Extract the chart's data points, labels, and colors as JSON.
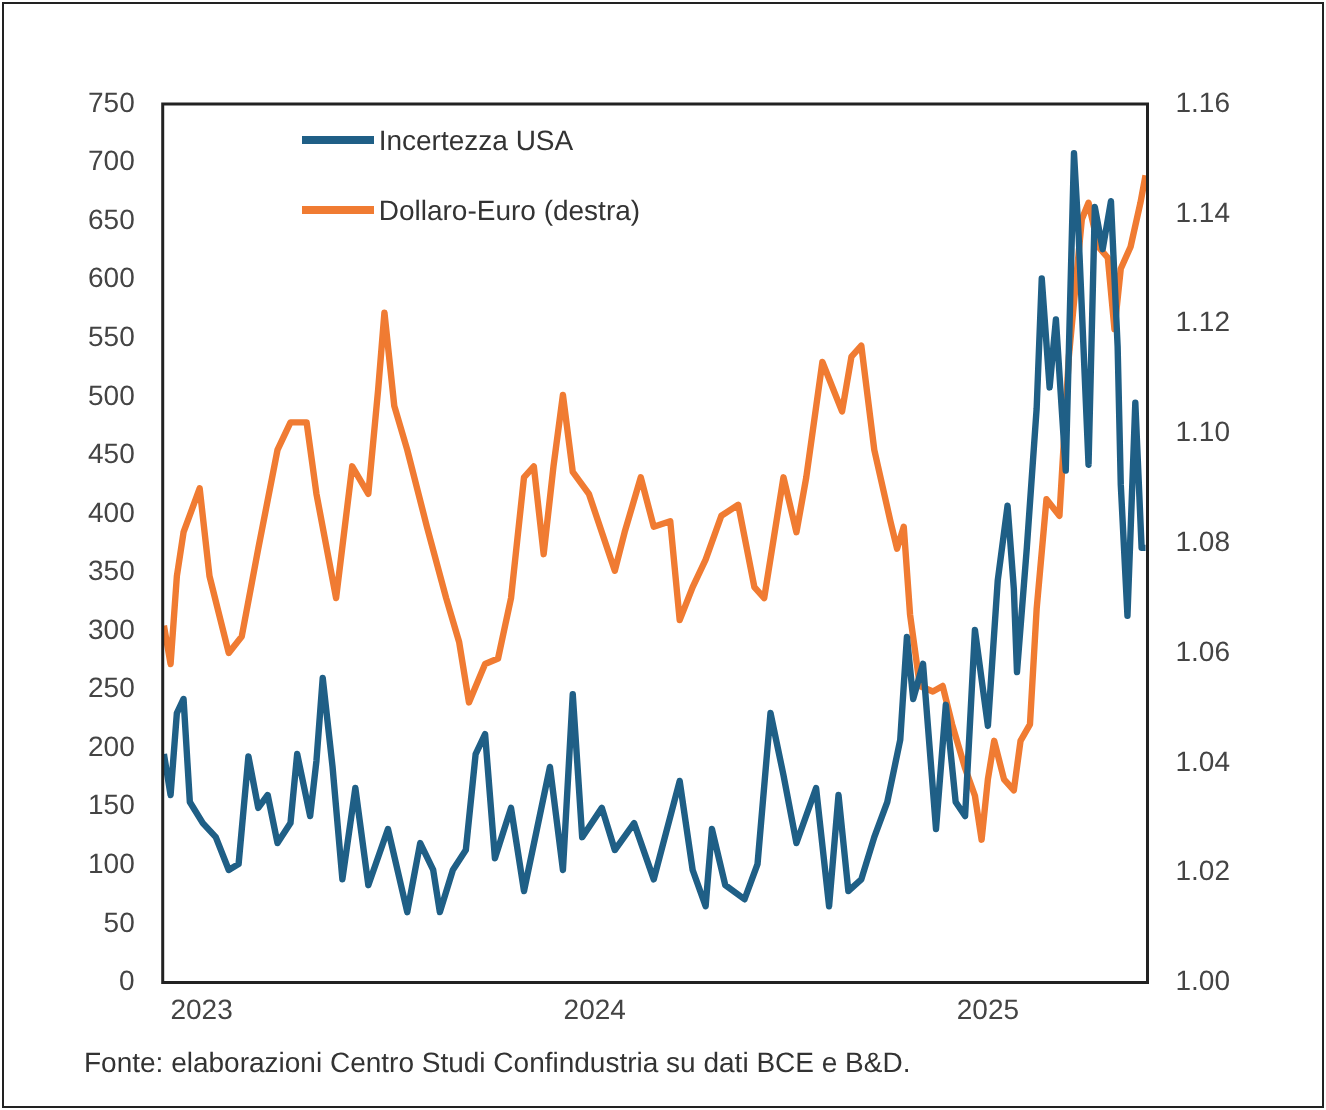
{
  "chart_data": {
    "type": "line",
    "xlim": [
      2022.901,
      2025.406
    ],
    "xticks": [
      2023,
      2024,
      2025
    ],
    "ylim": [
      0,
      750
    ],
    "yticks": [
      0,
      50,
      100,
      150,
      200,
      250,
      300,
      350,
      400,
      450,
      500,
      550,
      600,
      650,
      700,
      750
    ],
    "y2lim": [
      1.0,
      1.16
    ],
    "y2ticks": [
      {
        "value": 1.0,
        "label": "1.00"
      },
      {
        "value": 1.02,
        "label": "1.02"
      },
      {
        "value": 1.04,
        "label": "1.04"
      },
      {
        "value": 1.06,
        "label": "1.06"
      },
      {
        "value": 1.08,
        "label": "1.08"
      },
      {
        "value": 1.1,
        "label": "1.10"
      },
      {
        "value": 1.12,
        "label": "1.12"
      },
      {
        "value": 1.14,
        "label": "1.14"
      },
      {
        "value": 1.16,
        "label": "1.16"
      }
    ],
    "grid": false,
    "legend": "top left",
    "annotations": [
      "Fonte: elaborazioni Centro Studi Confindustria su dati BCE e B&D."
    ],
    "series": [
      {
        "name": "Incertezza USA",
        "color": "#1f5f86",
        "x": [
          2022.904,
          2022.921,
          2022.937,
          2022.954,
          2022.97,
          2023.003,
          2023.036,
          2023.069,
          2023.094,
          2023.119,
          2023.144,
          2023.168,
          2023.193,
          2023.226,
          2023.243,
          2023.276,
          2023.292,
          2023.308,
          2023.333,
          2023.358,
          2023.391,
          2023.424,
          2023.474,
          2023.523,
          2023.556,
          2023.589,
          2023.606,
          2023.639,
          2023.672,
          2023.697,
          2023.721,
          2023.746,
          2023.787,
          2023.82,
          2023.853,
          2023.886,
          2023.919,
          2023.944,
          2023.968,
          2024.018,
          2024.051,
          2024.1,
          2024.15,
          2024.216,
          2024.249,
          2024.282,
          2024.298,
          2024.332,
          2024.381,
          2024.414,
          2024.447,
          2024.48,
          2024.513,
          2024.563,
          2024.596,
          2024.62,
          2024.645,
          2024.678,
          2024.711,
          2024.744,
          2024.777,
          2024.794,
          2024.81,
          2024.835,
          2024.868,
          2024.893,
          2024.918,
          2024.942,
          2024.967,
          2025.0,
          2025.025,
          2025.05,
          2025.066,
          2025.074,
          2025.099,
          2025.124,
          2025.137,
          2025.157,
          2025.173,
          2025.198,
          2025.219,
          2025.231,
          2025.256,
          2025.272,
          2025.292,
          2025.313,
          2025.33,
          2025.338,
          2025.355,
          2025.375,
          2025.391,
          2025.401
        ],
        "values": [
          195,
          160,
          230,
          242,
          154,
          136,
          124,
          96,
          101,
          193,
          149,
          160,
          119,
          136,
          195,
          142,
          189,
          260,
          184,
          88,
          166,
          83,
          131,
          60,
          119,
          96,
          60,
          96,
          113,
          195,
          212,
          106,
          149,
          78,
          131,
          184,
          96,
          246,
          124,
          149,
          113,
          136,
          88,
          172,
          96,
          65,
          131,
          83,
          71,
          101,
          230,
          177,
          119,
          166,
          65,
          160,
          78,
          88,
          124,
          154,
          207,
          295,
          242,
          272,
          131,
          237,
          154,
          142,
          301,
          219,
          343,
          407,
          336,
          265,
          371,
          490,
          601,
          508,
          566,
          437,
          708,
          637,
          442,
          662,
          626,
          667,
          543,
          425,
          313,
          495,
          371,
          371
        ]
      },
      {
        "name": "Dollaro-Euro (destra)",
        "color": "#f07b32",
        "axis": "y2",
        "x": [
          2022.904,
          2022.921,
          2022.937,
          2022.954,
          2022.995,
          2023.02,
          2023.069,
          2023.102,
          2023.144,
          2023.193,
          2023.226,
          2023.267,
          2023.292,
          2023.342,
          2023.383,
          2023.424,
          2023.449,
          2023.465,
          2023.49,
          2023.523,
          2023.573,
          2023.622,
          2023.655,
          2023.68,
          2023.721,
          2023.754,
          2023.787,
          2023.82,
          2023.845,
          2023.87,
          2023.895,
          2023.919,
          2023.944,
          2023.985,
          2024.051,
          2024.076,
          2024.117,
          2024.15,
          2024.192,
          2024.216,
          2024.249,
          2024.282,
          2024.322,
          2024.365,
          2024.406,
          2024.431,
          2024.48,
          2024.513,
          2024.538,
          2024.579,
          2024.629,
          2024.653,
          2024.678,
          2024.711,
          2024.752,
          2024.769,
          2024.786,
          2024.802,
          2024.827,
          2024.86,
          2024.885,
          2024.909,
          2024.942,
          2024.967,
          2024.984,
          2025.0,
          2025.016,
          2025.041,
          2025.066,
          2025.083,
          2025.107,
          2025.124,
          2025.149,
          2025.182,
          2025.206,
          2025.239,
          2025.256,
          2025.281,
          2025.305,
          2025.322,
          2025.338,
          2025.363,
          2025.388,
          2025.401
        ],
        "values": [
          1.065,
          1.058,
          1.074,
          1.082,
          1.09,
          1.074,
          1.06,
          1.063,
          1.079,
          1.097,
          1.102,
          1.102,
          1.089,
          1.07,
          1.094,
          1.089,
          1.108,
          1.122,
          1.105,
          1.097,
          1.083,
          1.07,
          1.062,
          1.051,
          1.058,
          1.059,
          1.07,
          1.092,
          1.094,
          1.078,
          1.094,
          1.107,
          1.093,
          1.089,
          1.075,
          1.082,
          1.092,
          1.083,
          1.084,
          1.066,
          1.072,
          1.077,
          1.085,
          1.087,
          1.072,
          1.07,
          1.092,
          1.082,
          1.092,
          1.113,
          1.104,
          1.114,
          1.116,
          1.097,
          1.084,
          1.079,
          1.083,
          1.067,
          1.054,
          1.053,
          1.054,
          1.047,
          1.039,
          1.034,
          1.026,
          1.037,
          1.044,
          1.037,
          1.035,
          1.044,
          1.047,
          1.068,
          1.088,
          1.085,
          1.114,
          1.139,
          1.142,
          1.134,
          1.132,
          1.119,
          1.13,
          1.134,
          1.142,
          1.147
        ]
      }
    ]
  }
}
